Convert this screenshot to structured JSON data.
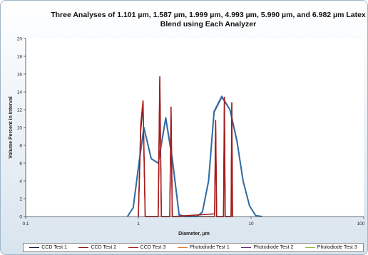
{
  "chart_data": {
    "type": "line",
    "title": "Three Analyses of 1.101 µm, 1.587 µm, 1.999 µm, 4.993 µm, 5.990 µm, and 6.982 µm Latex Blend using Each Analyzer",
    "title_lines": [
      "Three Analyses of 1.101 µm, 1.587 µm, 1.999 µm, 4.993 µm, 5.990 µm, and 6.982 µm Latex",
      "Blend using Each Analyzer"
    ],
    "xlabel": "Diameter, µm",
    "ylabel": "Volume Percent in Interval",
    "x_scale": "log",
    "xlim": [
      0.1,
      100
    ],
    "ylim": [
      0,
      20
    ],
    "x_ticks": [
      0.1,
      1,
      10,
      100
    ],
    "x_tick_labels": [
      "0.1",
      "1",
      "10",
      "100"
    ],
    "y_ticks": [
      0,
      2,
      4,
      6,
      8,
      10,
      12,
      14,
      16,
      18,
      20
    ],
    "y_tick_labels": [
      "0",
      "2",
      "4",
      "6",
      "8",
      "10",
      "12",
      "14",
      "16",
      "18",
      "20"
    ],
    "grid": false,
    "legend_position": "bottom",
    "series": [
      {
        "name": "CCD Test 1",
        "color": "#1f1f3f",
        "x": [
          1.0,
          1.05,
          1.1,
          1.15,
          1.5,
          1.55,
          1.6,
          1.65,
          1.9,
          1.95,
          2.0,
          2.05,
          4.75,
          4.85,
          4.95,
          5.05,
          5.7,
          5.8,
          5.9,
          6.0,
          6.65,
          6.75,
          6.85,
          6.95
        ],
        "y": [
          0,
          9.5,
          12.5,
          0,
          0,
          15.3,
          0,
          0,
          0,
          11.8,
          0,
          0,
          0,
          10.5,
          0,
          0,
          0,
          13.0,
          0,
          0,
          0,
          12.5,
          0,
          0
        ]
      },
      {
        "name": "CCD Test 2",
        "color": "#8b1a1a",
        "x": [
          1.0,
          1.05,
          1.1,
          1.15,
          1.5,
          1.55,
          1.6,
          1.65,
          1.9,
          1.95,
          2.0,
          2.05,
          4.75,
          4.85,
          4.95,
          5.05,
          5.7,
          5.8,
          5.9,
          6.0,
          6.65,
          6.75,
          6.85,
          6.95
        ],
        "y": [
          0,
          10.0,
          12.8,
          0,
          0,
          15.6,
          0,
          0,
          0,
          12.0,
          0,
          0,
          0,
          10.6,
          0,
          0,
          0,
          13.2,
          0,
          0,
          0,
          12.6,
          0,
          0
        ]
      },
      {
        "name": "CCD Test 3",
        "color": "#b22222",
        "x": [
          1.0,
          1.05,
          1.1,
          1.15,
          1.5,
          1.55,
          1.6,
          1.65,
          1.9,
          1.95,
          2.0,
          2.05,
          4.75,
          4.85,
          4.95,
          5.05,
          5.7,
          5.8,
          5.9,
          6.0,
          6.65,
          6.75,
          6.85,
          6.95
        ],
        "y": [
          0,
          10.3,
          13.0,
          0,
          0,
          15.7,
          0,
          0,
          0,
          12.3,
          0,
          0,
          0.3,
          10.8,
          0,
          0,
          0,
          13.4,
          0,
          0,
          0,
          12.8,
          0,
          0
        ]
      },
      {
        "name": "Photodiode Test 1",
        "color": "#e07a30",
        "x": [
          0.8,
          0.9,
          1.0,
          1.12,
          1.3,
          1.5,
          1.75,
          2.0,
          2.3,
          2.6,
          3.3,
          3.7,
          4.2,
          4.7,
          5.5,
          6.5,
          7.5,
          8.5,
          9.7,
          11.0,
          12.5
        ],
        "y": [
          0,
          1.0,
          5.5,
          10.0,
          6.5,
          6.0,
          11.0,
          6.5,
          0.2,
          0,
          0,
          0.5,
          4.0,
          11.8,
          13.5,
          12.0,
          8.5,
          4.0,
          1.2,
          0.1,
          0
        ]
      },
      {
        "name": "Photodiode Test 2",
        "color": "#6a2c70",
        "x": [
          0.8,
          0.9,
          1.0,
          1.12,
          1.3,
          1.5,
          1.75,
          2.0,
          2.3,
          2.6,
          3.3,
          3.7,
          4.2,
          4.7,
          5.5,
          6.5,
          7.5,
          8.5,
          9.7,
          11.0,
          12.5
        ],
        "y": [
          0,
          1.0,
          5.4,
          10.0,
          6.5,
          6.0,
          11.0,
          6.4,
          0.2,
          0,
          0,
          0.5,
          4.0,
          11.7,
          13.4,
          12.0,
          8.4,
          4.0,
          1.2,
          0.1,
          0
        ]
      },
      {
        "name": "Photodiode Test 3",
        "color": "#8fbf3f",
        "x": [
          0.8,
          0.9,
          1.0,
          1.12,
          1.3,
          1.5,
          1.75,
          2.0,
          2.3,
          2.6,
          3.3,
          3.7,
          4.2,
          4.7,
          5.5,
          6.5,
          7.5,
          8.5,
          9.7,
          11.0,
          12.5
        ],
        "y": [
          0,
          1.0,
          5.5,
          10.0,
          6.5,
          6.0,
          11.1,
          6.5,
          0.2,
          0,
          0,
          0.5,
          4.0,
          11.8,
          13.5,
          12.0,
          8.5,
          4.0,
          1.2,
          0.1,
          0
        ]
      }
    ],
    "overlay_series_colors": {
      "ccd_overlay": "#a61c1c",
      "photodiode_overlay": "#2f6fa8"
    }
  }
}
